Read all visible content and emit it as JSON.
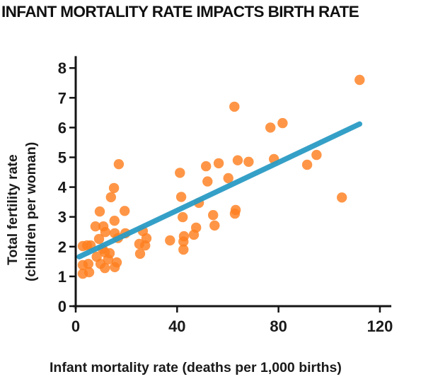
{
  "chart_data": {
    "type": "scatter",
    "title": "INFANT MORTALITY RATE IMPACTS BIRTH RATE",
    "xlabel": "Infant mortality rate (deaths per 1,000 births)",
    "ylabel": [
      "Total fertility rate",
      "(children per woman)"
    ],
    "xlim": [
      0,
      124.5
    ],
    "ylim": [
      0,
      8.4
    ],
    "xticks": [
      0,
      40,
      80,
      120
    ],
    "yticks": [
      0,
      1,
      2,
      3,
      4,
      5,
      6,
      7,
      8
    ],
    "grid": false,
    "legend": null,
    "colors": {
      "points": "#FF7F1E",
      "trendline": "#2A9BC4",
      "axis": "#151515"
    },
    "points": [
      {
        "x": 112.0,
        "y": 7.6
      },
      {
        "x": 62.6,
        "y": 6.7
      },
      {
        "x": 76.8,
        "y": 6.0
      },
      {
        "x": 81.6,
        "y": 6.15
      },
      {
        "x": 95.0,
        "y": 5.08
      },
      {
        "x": 91.3,
        "y": 4.75
      },
      {
        "x": 105.0,
        "y": 3.65
      },
      {
        "x": 78.2,
        "y": 4.94
      },
      {
        "x": 56.4,
        "y": 4.8
      },
      {
        "x": 63.9,
        "y": 4.9
      },
      {
        "x": 68.2,
        "y": 4.85
      },
      {
        "x": 60.2,
        "y": 4.3
      },
      {
        "x": 41.1,
        "y": 4.48
      },
      {
        "x": 51.4,
        "y": 4.7
      },
      {
        "x": 52.0,
        "y": 4.19
      },
      {
        "x": 41.6,
        "y": 3.67
      },
      {
        "x": 48.6,
        "y": 3.47
      },
      {
        "x": 42.2,
        "y": 2.99
      },
      {
        "x": 54.2,
        "y": 3.06
      },
      {
        "x": 63.1,
        "y": 3.23
      },
      {
        "x": 62.8,
        "y": 3.11
      },
      {
        "x": 54.8,
        "y": 2.71
      },
      {
        "x": 47.5,
        "y": 2.64
      },
      {
        "x": 46.6,
        "y": 2.4
      },
      {
        "x": 37.2,
        "y": 2.21
      },
      {
        "x": 42.7,
        "y": 2.35
      },
      {
        "x": 42.5,
        "y": 2.17
      },
      {
        "x": 42.5,
        "y": 1.9
      },
      {
        "x": 26.5,
        "y": 2.52
      },
      {
        "x": 27.9,
        "y": 2.28
      },
      {
        "x": 25.1,
        "y": 2.09
      },
      {
        "x": 27.4,
        "y": 2.04
      },
      {
        "x": 25.4,
        "y": 1.76
      },
      {
        "x": 17.0,
        "y": 4.77
      },
      {
        "x": 15.1,
        "y": 3.97
      },
      {
        "x": 13.9,
        "y": 3.66
      },
      {
        "x": 9.5,
        "y": 3.18
      },
      {
        "x": 19.3,
        "y": 3.2
      },
      {
        "x": 15.3,
        "y": 2.87
      },
      {
        "x": 7.8,
        "y": 2.68
      },
      {
        "x": 10.9,
        "y": 2.68
      },
      {
        "x": 11.7,
        "y": 2.49
      },
      {
        "x": 15.4,
        "y": 2.45
      },
      {
        "x": 19.6,
        "y": 2.45
      },
      {
        "x": 16.7,
        "y": 2.29
      },
      {
        "x": 9.2,
        "y": 2.26
      },
      {
        "x": 2.8,
        "y": 2.02
      },
      {
        "x": 4.5,
        "y": 2.04
      },
      {
        "x": 5.9,
        "y": 2.04
      },
      {
        "x": 10.6,
        "y": 1.92
      },
      {
        "x": 11.5,
        "y": 1.81
      },
      {
        "x": 13.4,
        "y": 1.78
      },
      {
        "x": 8.3,
        "y": 1.66
      },
      {
        "x": 2.8,
        "y": 1.38
      },
      {
        "x": 5.0,
        "y": 1.42
      },
      {
        "x": 9.8,
        "y": 1.42
      },
      {
        "x": 11.5,
        "y": 1.28
      },
      {
        "x": 16.2,
        "y": 1.47
      },
      {
        "x": 15.4,
        "y": 1.31
      },
      {
        "x": 2.8,
        "y": 1.09
      },
      {
        "x": 5.3,
        "y": 1.14
      },
      {
        "x": 12.8,
        "y": 1.57
      }
    ],
    "trendline": {
      "x": [
        1.4,
        112.0
      ],
      "y": [
        1.66,
        6.12
      ]
    }
  }
}
